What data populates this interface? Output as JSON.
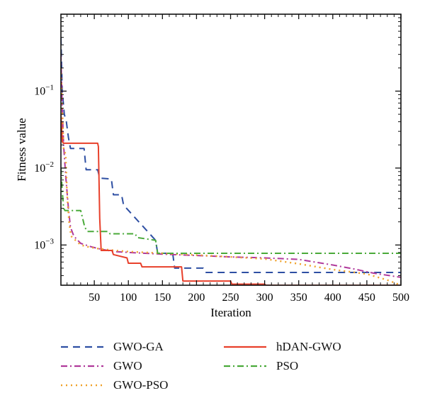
{
  "chart_data": {
    "type": "line",
    "xlabel": "Iteration",
    "ylabel": "Fitness value",
    "xlim": [
      1,
      500
    ],
    "ylim": [
      0.0003,
      1.0
    ],
    "yscale": "log",
    "xticks": [
      50,
      100,
      150,
      200,
      250,
      300,
      350,
      400,
      450,
      500
    ],
    "yticks": [
      {
        "value": 0.1,
        "base": "10",
        "exp": "−1"
      },
      {
        "value": 0.01,
        "base": "10",
        "exp": "−2"
      },
      {
        "value": 0.001,
        "base": "10",
        "exp": "−3"
      }
    ],
    "legend_position": "bottom",
    "series": [
      {
        "name": "GWO-GA",
        "color": "#2e4fa3",
        "dash": "dashed",
        "x": [
          1,
          3,
          6,
          9,
          12,
          15,
          35,
          38,
          55,
          58,
          75,
          78,
          90,
          93,
          140,
          143,
          165,
          168,
          210,
          213,
          500
        ],
        "y": [
          0.5,
          0.1,
          0.05,
          0.04,
          0.025,
          0.018,
          0.018,
          0.0095,
          0.0095,
          0.0074,
          0.0072,
          0.0045,
          0.0045,
          0.0033,
          0.00115,
          0.00078,
          0.00078,
          0.0005,
          0.0005,
          0.00044,
          0.00044
        ]
      },
      {
        "name": "GWO",
        "color": "#b0399b",
        "dash": "dashdot",
        "x": [
          1,
          3,
          5,
          8,
          12,
          15,
          20,
          30,
          45,
          60,
          80,
          100,
          150,
          200,
          250,
          300,
          350,
          400,
          430,
          460,
          500
        ],
        "y": [
          0.3,
          0.06,
          0.02,
          0.008,
          0.003,
          0.0017,
          0.0013,
          0.00105,
          0.00095,
          0.00088,
          0.00082,
          0.0008,
          0.00076,
          0.00073,
          0.0007,
          0.00068,
          0.00065,
          0.00055,
          0.00049,
          0.00043,
          0.00038
        ]
      },
      {
        "name": "GWO-PSO",
        "color": "#f0a22a",
        "dash": "dotted",
        "x": [
          1,
          5,
          8,
          10,
          13,
          16,
          20,
          25,
          30,
          40,
          55,
          80,
          100,
          150,
          200,
          250,
          300,
          350,
          400,
          450,
          480,
          500
        ],
        "y": [
          0.2,
          0.018,
          0.015,
          0.0045,
          0.002,
          0.0013,
          0.0012,
          0.0011,
          0.001,
          0.00095,
          0.0009,
          0.00085,
          0.00082,
          0.00078,
          0.00074,
          0.0007,
          0.00066,
          0.00057,
          0.00048,
          0.00042,
          0.00035,
          0.0003
        ]
      },
      {
        "name": "hDAN-GWO",
        "color": "#e8402b",
        "dash": "solid",
        "x": [
          1,
          3,
          5,
          8,
          55,
          56,
          58,
          60,
          76,
          78,
          98,
          100,
          118,
          120,
          178,
          180,
          250,
          252,
          300,
          302,
          500
        ],
        "y": [
          0.05,
          0.022,
          0.021,
          0.021,
          0.021,
          0.019,
          0.0022,
          0.00085,
          0.00085,
          0.00075,
          0.00068,
          0.00058,
          0.00058,
          0.00052,
          0.00052,
          0.00034,
          0.00034,
          0.00031,
          0.00031,
          0.0003,
          0.0003
        ]
      },
      {
        "name": "PSO",
        "color": "#4aaa3a",
        "dash": "dashdot",
        "x": [
          1,
          3,
          5,
          7,
          10,
          30,
          33,
          36,
          40,
          70,
          73,
          110,
          113,
          140,
          143,
          500
        ],
        "y": [
          0.01,
          0.005,
          0.003,
          0.0028,
          0.0028,
          0.0028,
          0.0022,
          0.0017,
          0.0015,
          0.0015,
          0.0014,
          0.0014,
          0.00125,
          0.00115,
          0.00078,
          0.00078
        ]
      }
    ]
  }
}
